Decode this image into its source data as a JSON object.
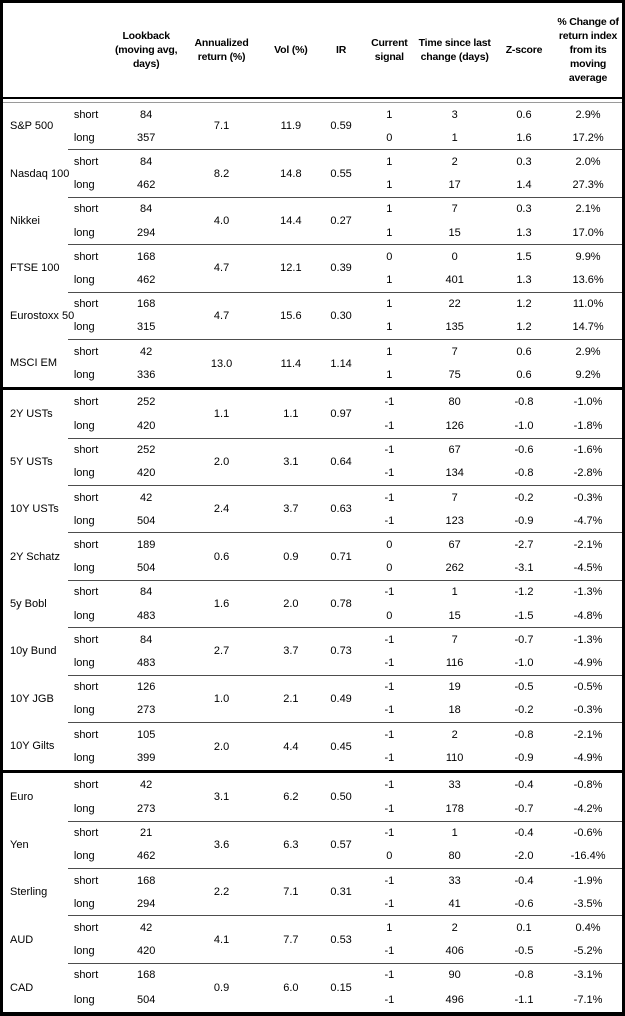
{
  "table": {
    "column_headers": {
      "lookback": "Lookback (moving avg, days)",
      "annualized_return": "Annualized return (%)",
      "vol": "Vol (%)",
      "ir": "IR",
      "current_signal": "Current signal",
      "time_since_last_change": "Time since last change (days)",
      "z_score": "Z-score",
      "pct_change": "% Change of return index from its moving average"
    },
    "sections": [
      {
        "id": "equities",
        "groups": [
          {
            "asset": "S&P 500",
            "annualized_return": "7.1",
            "vol": "11.9",
            "ir": "0.59",
            "rows": [
              {
                "horizon": "short",
                "lookback": "84",
                "current_signal": "1",
                "time_since_last_change": "3",
                "z_score": "0.6",
                "pct_change": "2.9%"
              },
              {
                "horizon": "long",
                "lookback": "357",
                "current_signal": "0",
                "time_since_last_change": "1",
                "z_score": "1.6",
                "pct_change": "17.2%"
              }
            ]
          },
          {
            "asset": "Nasdaq 100",
            "annualized_return": "8.2",
            "vol": "14.8",
            "ir": "0.55",
            "rows": [
              {
                "horizon": "short",
                "lookback": "84",
                "current_signal": "1",
                "time_since_last_change": "2",
                "z_score": "0.3",
                "pct_change": "2.0%"
              },
              {
                "horizon": "long",
                "lookback": "462",
                "current_signal": "1",
                "time_since_last_change": "17",
                "z_score": "1.4",
                "pct_change": "27.3%"
              }
            ]
          },
          {
            "asset": "Nikkei",
            "annualized_return": "4.0",
            "vol": "14.4",
            "ir": "0.27",
            "rows": [
              {
                "horizon": "short",
                "lookback": "84",
                "current_signal": "1",
                "time_since_last_change": "7",
                "z_score": "0.3",
                "pct_change": "2.1%"
              },
              {
                "horizon": "long",
                "lookback": "294",
                "current_signal": "1",
                "time_since_last_change": "15",
                "z_score": "1.3",
                "pct_change": "17.0%"
              }
            ]
          },
          {
            "asset": "FTSE 100",
            "annualized_return": "4.7",
            "vol": "12.1",
            "ir": "0.39",
            "rows": [
              {
                "horizon": "short",
                "lookback": "168",
                "current_signal": "0",
                "time_since_last_change": "0",
                "z_score": "1.5",
                "pct_change": "9.9%"
              },
              {
                "horizon": "long",
                "lookback": "462",
                "current_signal": "1",
                "time_since_last_change": "401",
                "z_score": "1.3",
                "pct_change": "13.6%"
              }
            ]
          },
          {
            "asset": "Eurostoxx 50",
            "annualized_return": "4.7",
            "vol": "15.6",
            "ir": "0.30",
            "rows": [
              {
                "horizon": "short",
                "lookback": "168",
                "current_signal": "1",
                "time_since_last_change": "22",
                "z_score": "1.2",
                "pct_change": "11.0%"
              },
              {
                "horizon": "long",
                "lookback": "315",
                "current_signal": "1",
                "time_since_last_change": "135",
                "z_score": "1.2",
                "pct_change": "14.7%"
              }
            ]
          },
          {
            "asset": "MSCI EM",
            "annualized_return": "13.0",
            "vol": "11.4",
            "ir": "1.14",
            "rows": [
              {
                "horizon": "short",
                "lookback": "42",
                "current_signal": "1",
                "time_since_last_change": "7",
                "z_score": "0.6",
                "pct_change": "2.9%"
              },
              {
                "horizon": "long",
                "lookback": "336",
                "current_signal": "1",
                "time_since_last_change": "75",
                "z_score": "0.6",
                "pct_change": "9.2%"
              }
            ]
          }
        ]
      },
      {
        "id": "rates",
        "groups": [
          {
            "asset": "2Y USTs",
            "annualized_return": "1.1",
            "vol": "1.1",
            "ir": "0.97",
            "rows": [
              {
                "horizon": "short",
                "lookback": "252",
                "current_signal": "-1",
                "time_since_last_change": "80",
                "z_score": "-0.8",
                "pct_change": "-1.0%"
              },
              {
                "horizon": "long",
                "lookback": "420",
                "current_signal": "-1",
                "time_since_last_change": "126",
                "z_score": "-1.0",
                "pct_change": "-1.8%"
              }
            ]
          },
          {
            "asset": "5Y USTs",
            "annualized_return": "2.0",
            "vol": "3.1",
            "ir": "0.64",
            "rows": [
              {
                "horizon": "short",
                "lookback": "252",
                "current_signal": "-1",
                "time_since_last_change": "67",
                "z_score": "-0.6",
                "pct_change": "-1.6%"
              },
              {
                "horizon": "long",
                "lookback": "420",
                "current_signal": "-1",
                "time_since_last_change": "134",
                "z_score": "-0.8",
                "pct_change": "-2.8%"
              }
            ]
          },
          {
            "asset": "10Y USTs",
            "annualized_return": "2.4",
            "vol": "3.7",
            "ir": "0.63",
            "rows": [
              {
                "horizon": "short",
                "lookback": "42",
                "current_signal": "-1",
                "time_since_last_change": "7",
                "z_score": "-0.2",
                "pct_change": "-0.3%"
              },
              {
                "horizon": "long",
                "lookback": "504",
                "current_signal": "-1",
                "time_since_last_change": "123",
                "z_score": "-0.9",
                "pct_change": "-4.7%"
              }
            ]
          },
          {
            "asset": "2Y Schatz",
            "annualized_return": "0.6",
            "vol": "0.9",
            "ir": "0.71",
            "rows": [
              {
                "horizon": "short",
                "lookback": "189",
                "current_signal": "0",
                "time_since_last_change": "67",
                "z_score": "-2.7",
                "pct_change": "-2.1%"
              },
              {
                "horizon": "long",
                "lookback": "504",
                "current_signal": "0",
                "time_since_last_change": "262",
                "z_score": "-3.1",
                "pct_change": "-4.5%"
              }
            ]
          },
          {
            "asset": "5y Bobl",
            "annualized_return": "1.6",
            "vol": "2.0",
            "ir": "0.78",
            "rows": [
              {
                "horizon": "short",
                "lookback": "84",
                "current_signal": "-1",
                "time_since_last_change": "1",
                "z_score": "-1.2",
                "pct_change": "-1.3%"
              },
              {
                "horizon": "long",
                "lookback": "483",
                "current_signal": "0",
                "time_since_last_change": "15",
                "z_score": "-1.5",
                "pct_change": "-4.8%"
              }
            ]
          },
          {
            "asset": "10y Bund",
            "annualized_return": "2.7",
            "vol": "3.7",
            "ir": "0.73",
            "rows": [
              {
                "horizon": "short",
                "lookback": "84",
                "current_signal": "-1",
                "time_since_last_change": "7",
                "z_score": "-0.7",
                "pct_change": "-1.3%"
              },
              {
                "horizon": "long",
                "lookback": "483",
                "current_signal": "-1",
                "time_since_last_change": "116",
                "z_score": "-1.0",
                "pct_change": "-4.9%"
              }
            ]
          },
          {
            "asset": "10Y JGB",
            "annualized_return": "1.0",
            "vol": "2.1",
            "ir": "0.49",
            "rows": [
              {
                "horizon": "short",
                "lookback": "126",
                "current_signal": "-1",
                "time_since_last_change": "19",
                "z_score": "-0.5",
                "pct_change": "-0.5%"
              },
              {
                "horizon": "long",
                "lookback": "273",
                "current_signal": "-1",
                "time_since_last_change": "18",
                "z_score": "-0.2",
                "pct_change": "-0.3%"
              }
            ]
          },
          {
            "asset": "10Y Gilts",
            "annualized_return": "2.0",
            "vol": "4.4",
            "ir": "0.45",
            "rows": [
              {
                "horizon": "short",
                "lookback": "105",
                "current_signal": "-1",
                "time_since_last_change": "2",
                "z_score": "-0.8",
                "pct_change": "-2.1%"
              },
              {
                "horizon": "long",
                "lookback": "399",
                "current_signal": "-1",
                "time_since_last_change": "110",
                "z_score": "-0.9",
                "pct_change": "-4.9%"
              }
            ]
          }
        ]
      },
      {
        "id": "fx",
        "groups": [
          {
            "asset": "Euro",
            "annualized_return": "3.1",
            "vol": "6.2",
            "ir": "0.50",
            "rows": [
              {
                "horizon": "short",
                "lookback": "42",
                "current_signal": "-1",
                "time_since_last_change": "33",
                "z_score": "-0.4",
                "pct_change": "-0.8%"
              },
              {
                "horizon": "long",
                "lookback": "273",
                "current_signal": "-1",
                "time_since_last_change": "178",
                "z_score": "-0.7",
                "pct_change": "-4.2%"
              }
            ]
          },
          {
            "asset": "Yen",
            "annualized_return": "3.6",
            "vol": "6.3",
            "ir": "0.57",
            "rows": [
              {
                "horizon": "short",
                "lookback": "21",
                "current_signal": "-1",
                "time_since_last_change": "1",
                "z_score": "-0.4",
                "pct_change": "-0.6%"
              },
              {
                "horizon": "long",
                "lookback": "462",
                "current_signal": "0",
                "time_since_last_change": "80",
                "z_score": "-2.0",
                "pct_change": "-16.4%"
              }
            ]
          },
          {
            "asset": "Sterling",
            "annualized_return": "2.2",
            "vol": "7.1",
            "ir": "0.31",
            "rows": [
              {
                "horizon": "short",
                "lookback": "168",
                "current_signal": "-1",
                "time_since_last_change": "33",
                "z_score": "-0.4",
                "pct_change": "-1.9%"
              },
              {
                "horizon": "long",
                "lookback": "294",
                "current_signal": "-1",
                "time_since_last_change": "41",
                "z_score": "-0.6",
                "pct_change": "-3.5%"
              }
            ]
          },
          {
            "asset": "AUD",
            "annualized_return": "4.1",
            "vol": "7.7",
            "ir": "0.53",
            "rows": [
              {
                "horizon": "short",
                "lookback": "42",
                "current_signal": "1",
                "time_since_last_change": "2",
                "z_score": "0.1",
                "pct_change": "0.4%"
              },
              {
                "horizon": "long",
                "lookback": "420",
                "current_signal": "-1",
                "time_since_last_change": "406",
                "z_score": "-0.5",
                "pct_change": "-5.2%"
              }
            ]
          },
          {
            "asset": "CAD",
            "annualized_return": "0.9",
            "vol": "6.0",
            "ir": "0.15",
            "rows": [
              {
                "horizon": "short",
                "lookback": "168",
                "current_signal": "-1",
                "time_since_last_change": "90",
                "z_score": "-0.8",
                "pct_change": "-3.1%"
              },
              {
                "horizon": "long",
                "lookback": "504",
                "current_signal": "-1",
                "time_since_last_change": "496",
                "z_score": "-1.1",
                "pct_change": "-7.1%"
              }
            ]
          }
        ]
      }
    ]
  }
}
